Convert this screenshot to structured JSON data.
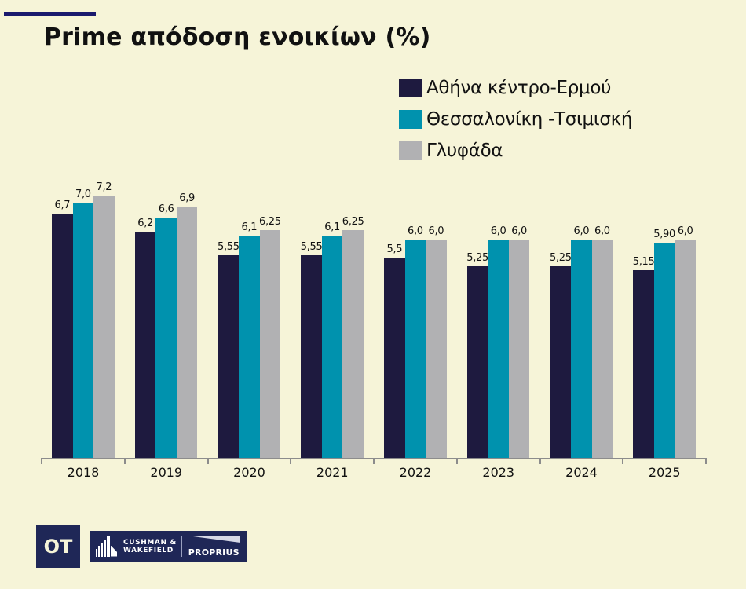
{
  "header": {
    "title": "Prime απόδοση ενοικίων (%)"
  },
  "legend": [
    {
      "label": "Αθήνα κέντρο-Ερμού",
      "color": "#1e1a3f"
    },
    {
      "label": "Θεσσαλονίκη -Τσιμισκή",
      "color": "#0092ae"
    },
    {
      "label": "Γλυφάδα",
      "color": "#b1b1b3"
    }
  ],
  "chart_data": {
    "type": "bar",
    "title": "Prime απόδοση ενοικίων (%)",
    "xlabel": "",
    "ylabel": "%",
    "categories": [
      "2018",
      "2019",
      "2020",
      "2021",
      "2022",
      "2023",
      "2024",
      "2025"
    ],
    "series": [
      {
        "name": "Αθήνα κέντρο-Ερμού",
        "color": "#1e1a3f",
        "values": [
          6.7,
          6.2,
          5.55,
          5.55,
          5.5,
          5.25,
          5.25,
          5.15
        ],
        "labels": [
          "6,7",
          "6,2",
          "5,55",
          "5,55",
          "5,5",
          "5,25",
          "5,25",
          "5,15"
        ]
      },
      {
        "name": "Θεσσαλονίκη -Τσιμισκή",
        "color": "#0092ae",
        "values": [
          7.0,
          6.6,
          6.1,
          6.1,
          6.0,
          6.0,
          6.0,
          5.9
        ],
        "labels": [
          "7,0",
          "6,6",
          "6,1",
          "6,1",
          "6,0",
          "6,0",
          "6,0",
          "5,90"
        ]
      },
      {
        "name": "Γλυφάδα",
        "color": "#b1b1b3",
        "values": [
          7.2,
          6.9,
          6.25,
          6.25,
          6.0,
          6.0,
          6.0,
          6.0
        ],
        "labels": [
          "7,2",
          "6,9",
          "6,25",
          "6,25",
          "6,0",
          "6,0",
          "6,0",
          "6,0"
        ]
      }
    ],
    "ylim": [
      0,
      7.5
    ],
    "grid": false,
    "legend_position": "top-right",
    "data_labels": true
  },
  "footer": {
    "logo_ot": "OT",
    "logo_cw_line1": "CUSHMAN &",
    "logo_cw_line2": "WAKEFIELD",
    "logo_partner": "PROPRIUS"
  }
}
